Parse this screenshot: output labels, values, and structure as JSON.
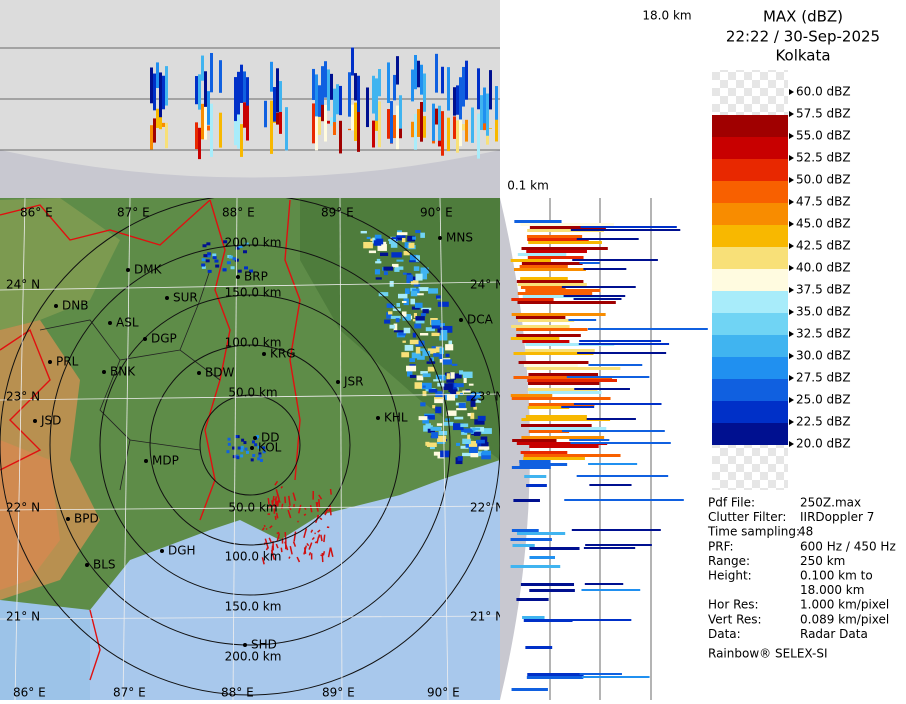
{
  "header": {
    "title": "MAX (dBZ)",
    "datetime": "22:22 / 30-Sep-2025",
    "station": "Kolkata"
  },
  "height_labels": {
    "top": "18.0 km",
    "bottom": "0.1 km"
  },
  "legend": [
    {
      "label": "60.0 dBZ",
      "color": null
    },
    {
      "label": "57.5 dBZ",
      "color": "#a00000"
    },
    {
      "label": "55.0 dBZ",
      "color": "#c80000"
    },
    {
      "label": "52.5 dBZ",
      "color": "#e82800"
    },
    {
      "label": "50.0 dBZ",
      "color": "#f86000"
    },
    {
      "label": "47.5 dBZ",
      "color": "#f88c00"
    },
    {
      "label": "45.0 dBZ",
      "color": "#f8b800"
    },
    {
      "label": "42.5 dBZ",
      "color": "#f8e078"
    },
    {
      "label": "40.0 dBZ",
      "color": "#fffbe0"
    },
    {
      "label": "37.5 dBZ",
      "color": "#a8ecfa"
    },
    {
      "label": "35.0 dBZ",
      "color": "#70d4f4"
    },
    {
      "label": "32.5 dBZ",
      "color": "#40b4f0"
    },
    {
      "label": "30.0 dBZ",
      "color": "#2090f0"
    },
    {
      "label": "27.5 dBZ",
      "color": "#1060e0"
    },
    {
      "label": "25.0 dBZ",
      "color": "#0030c8"
    },
    {
      "label": "22.5 dBZ",
      "color": "#001090"
    },
    {
      "label": "20.0 dBZ",
      "color": null
    }
  ],
  "info": [
    {
      "key": "Pdf File:",
      "lines": [
        "250Z.max"
      ]
    },
    {
      "key": "Clutter Filter:",
      "lines": [
        "IIRDoppler 7"
      ]
    },
    {
      "key": "Time sampling:",
      "lines": [
        "48"
      ]
    },
    {
      "key": "PRF:",
      "lines": [
        "600 Hz / 450 Hz"
      ]
    },
    {
      "key": "Range:",
      "lines": [
        "250 km"
      ]
    },
    {
      "key": "Height:",
      "lines": [
        "0.100 km to",
        "18.000 km"
      ]
    },
    {
      "key": "Hor Res:",
      "lines": [
        "1.000 km/pixel"
      ]
    },
    {
      "key": "Vert Res:",
      "lines": [
        "0.089 km/pixel"
      ]
    },
    {
      "key": "Data:",
      "lines": [
        "Radar Data"
      ]
    }
  ],
  "footer": "Rainbow® SELEX-SI",
  "map": {
    "lon_labels": [
      "86° E",
      "87° E",
      "88° E",
      "89° E",
      "90° E"
    ],
    "lat_labels": [
      "24° N",
      "23° N",
      "22° N",
      "21° N"
    ],
    "range_labels": [
      "50.0 km",
      "100.0 km",
      "150.0 km",
      "200.0 km"
    ],
    "cities": [
      "MNS",
      "DMK",
      "BRP",
      "SUR",
      "DNB",
      "ASL",
      "DGP",
      "DCA",
      "KRG",
      "PRL",
      "BNK",
      "BDW",
      "JSR",
      "KHL",
      "JSD",
      "DD",
      "KOL",
      "MDP",
      "BPD",
      "DGH",
      "BLS",
      "SHD"
    ]
  }
}
